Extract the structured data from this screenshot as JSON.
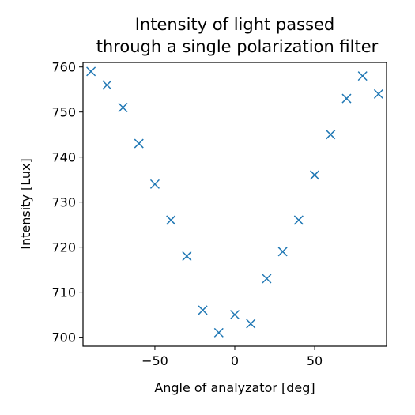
{
  "chart_data": {
    "type": "scatter",
    "title_lines": [
      "Intensity of light passed",
      "through a single polarization filter"
    ],
    "xlabel": "Angle of analyzator [deg]",
    "ylabel": "Intensity [Lux]",
    "xlim": [
      -95,
      95
    ],
    "ylim": [
      698,
      761
    ],
    "xticks": [
      -50,
      0,
      50
    ],
    "xtick_labels": [
      "−50",
      "0",
      "50"
    ],
    "yticks": [
      700,
      710,
      720,
      730,
      740,
      750,
      760
    ],
    "ytick_labels": [
      "700",
      "710",
      "720",
      "730",
      "740",
      "750",
      "760"
    ],
    "grid": false,
    "legend": "none",
    "marker": "x",
    "color": "#1f77b4",
    "x": [
      -90,
      -80,
      -70,
      -60,
      -50,
      -40,
      -30,
      -20,
      -10,
      0,
      10,
      20,
      30,
      40,
      50,
      60,
      70,
      80,
      90
    ],
    "y": [
      759,
      756,
      751,
      743,
      734,
      726,
      718,
      706,
      701,
      705,
      703,
      713,
      719,
      726,
      736,
      745,
      753,
      758,
      754
    ]
  }
}
